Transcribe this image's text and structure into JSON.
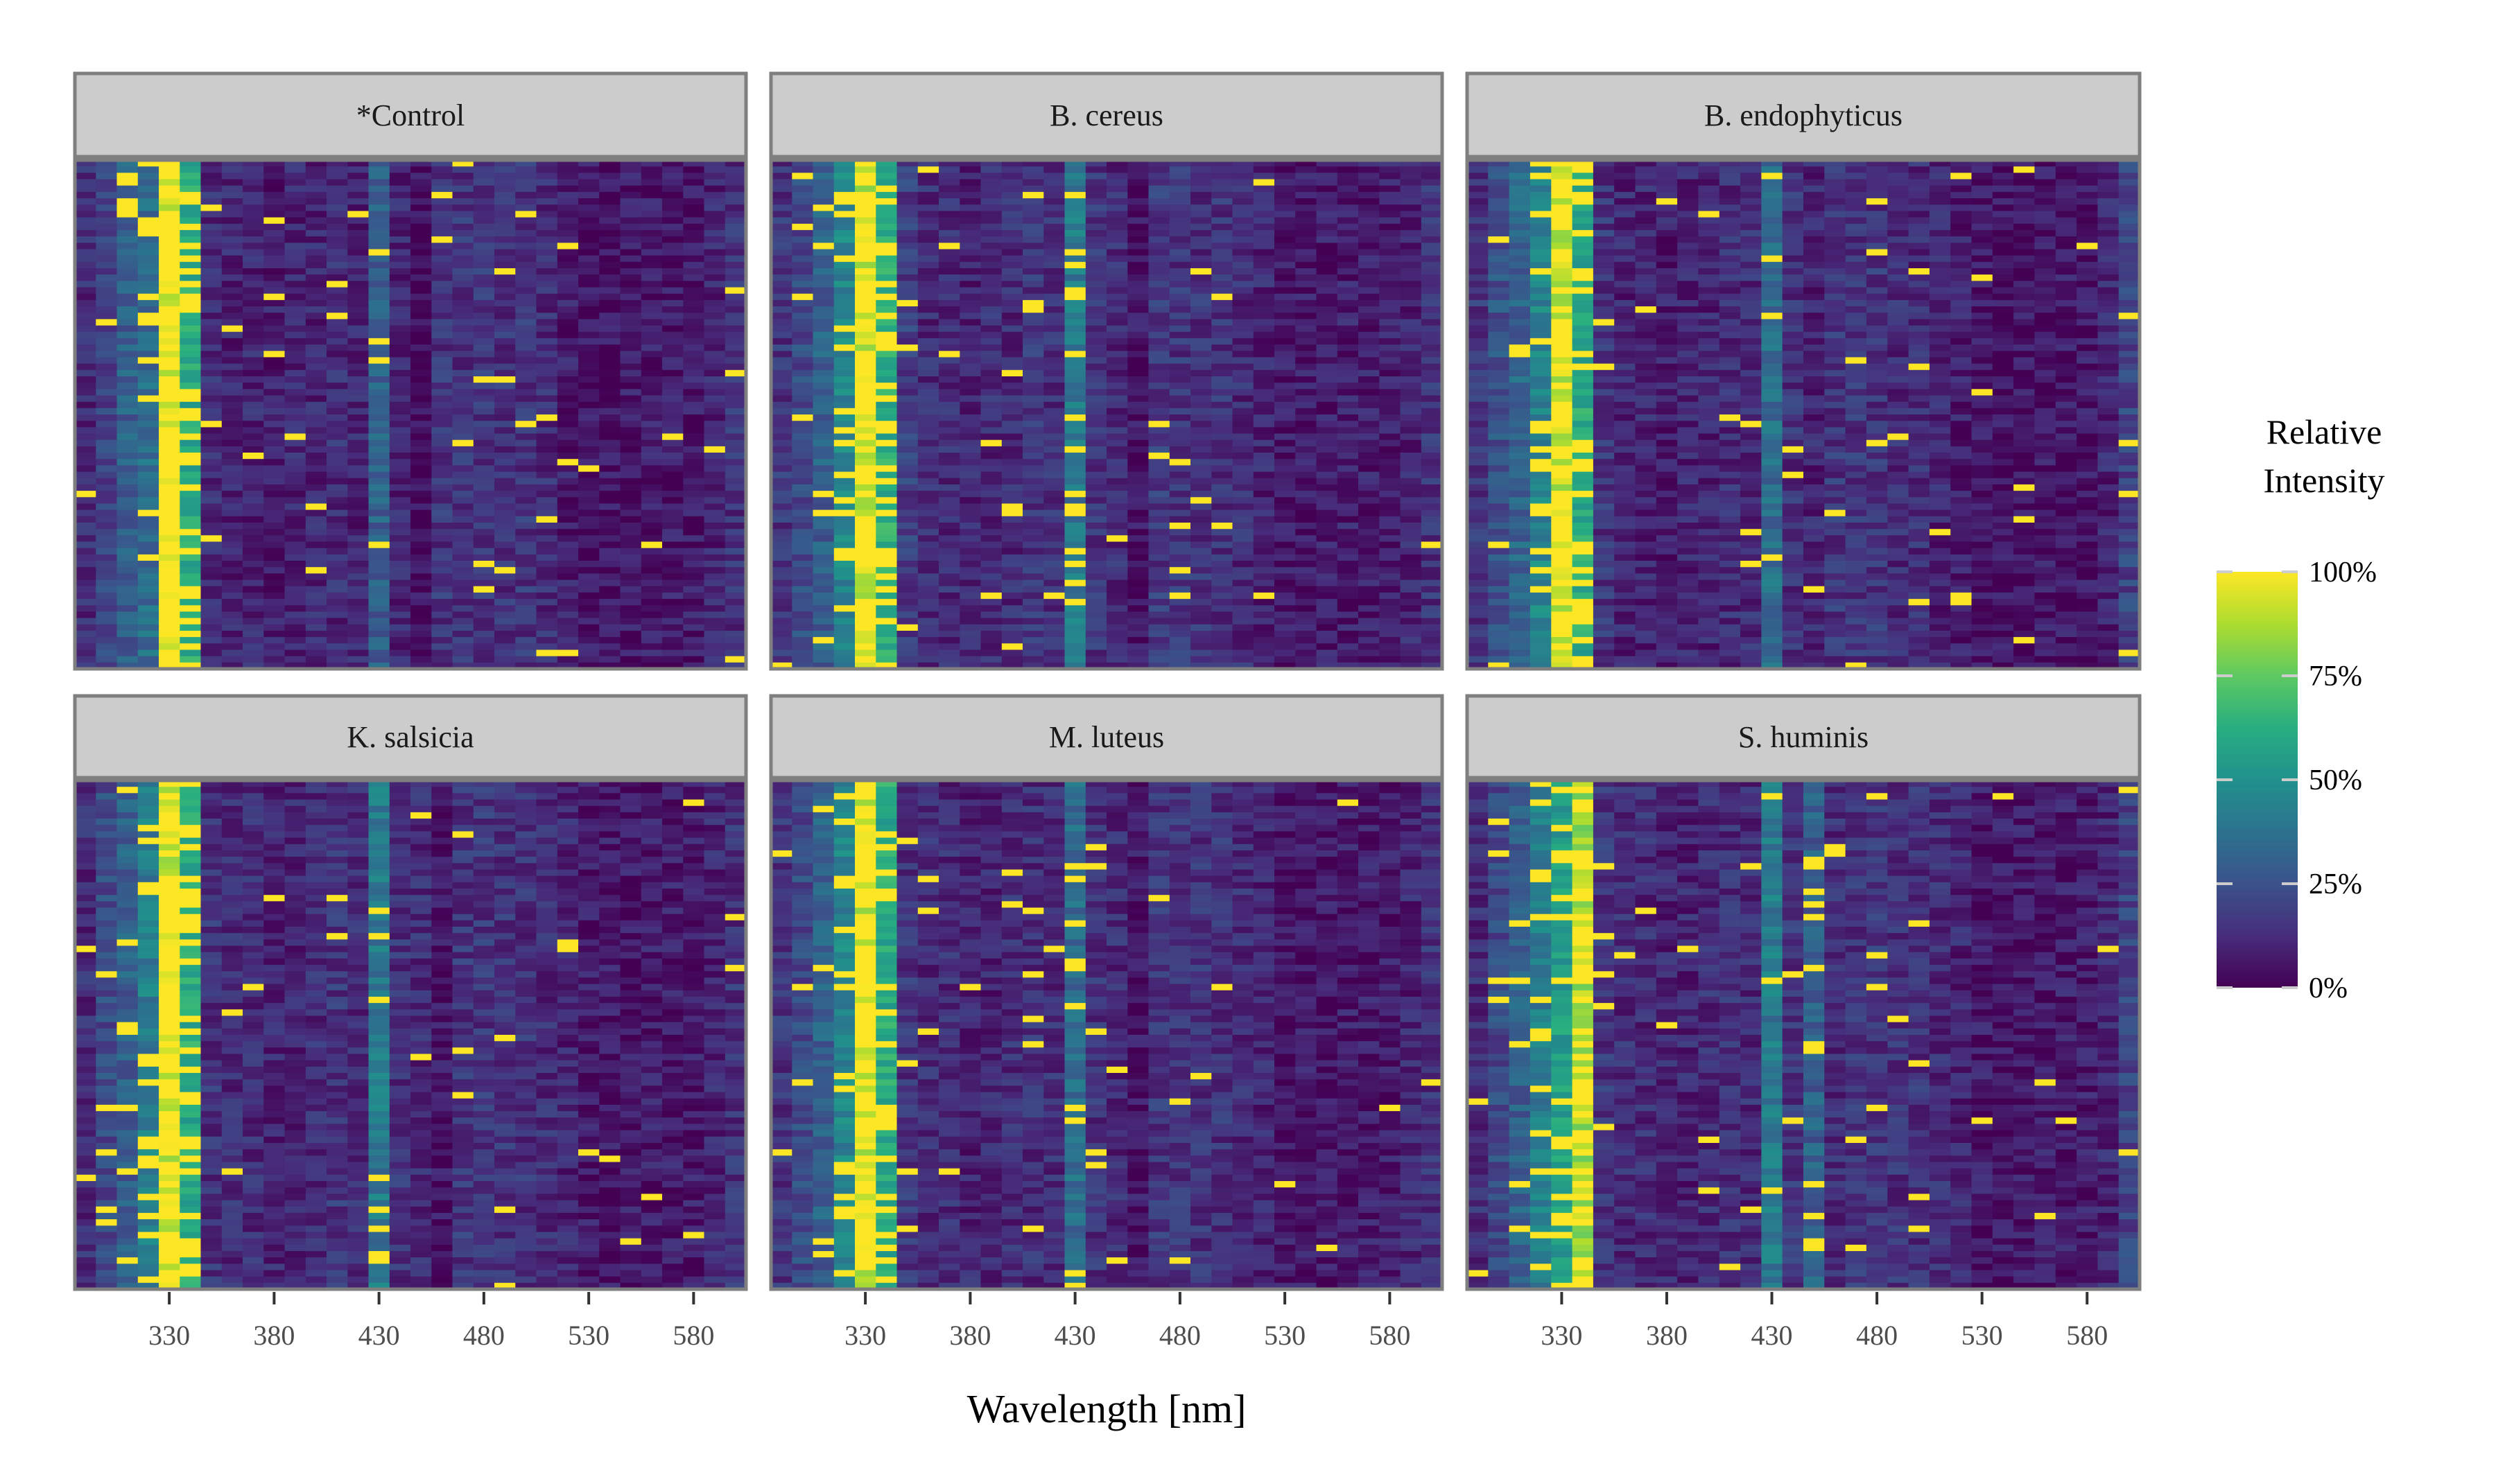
{
  "chart_data": {
    "type": "heatmap",
    "xlabel": "Wavelength [nm]",
    "ylabel": "",
    "x_ticks": [
      330,
      380,
      430,
      480,
      530,
      580
    ],
    "x_range": [
      285,
      605
    ],
    "wavelengths": [
      290,
      300,
      310,
      320,
      330,
      340,
      350,
      360,
      370,
      380,
      390,
      400,
      410,
      420,
      430,
      440,
      450,
      460,
      470,
      480,
      490,
      500,
      510,
      520,
      530,
      540,
      550,
      560,
      570,
      580,
      590,
      600
    ],
    "legend": {
      "title_lines": [
        "Relative",
        "Intensity"
      ],
      "ticks": [
        "0%",
        "25%",
        "50%",
        "75%",
        "100%"
      ],
      "tick_values": [
        0,
        25,
        50,
        75,
        100
      ],
      "colormap": "viridis",
      "placement": "right"
    },
    "grid": false,
    "panels": [
      {
        "name": "*Control",
        "column_mean": [
          0.12,
          0.2,
          0.3,
          0.35,
          0.95,
          0.6,
          0.12,
          0.1,
          0.1,
          0.08,
          0.1,
          0.1,
          0.12,
          0.1,
          0.3,
          0.1,
          0.03,
          0.15,
          0.15,
          0.15,
          0.14,
          0.15,
          0.12,
          0.08,
          0.05,
          0.05,
          0.06,
          0.07,
          0.07,
          0.07,
          0.1,
          0.14
        ]
      },
      {
        "name": "B. cereus",
        "column_mean": [
          0.15,
          0.22,
          0.3,
          0.45,
          0.9,
          0.62,
          0.18,
          0.12,
          0.12,
          0.1,
          0.12,
          0.12,
          0.15,
          0.14,
          0.4,
          0.15,
          0.12,
          0.05,
          0.16,
          0.15,
          0.14,
          0.14,
          0.12,
          0.1,
          0.06,
          0.06,
          0.07,
          0.08,
          0.08,
          0.08,
          0.1,
          0.14
        ]
      },
      {
        "name": "B. endophyticus",
        "column_mean": [
          0.15,
          0.25,
          0.32,
          0.45,
          0.9,
          0.6,
          0.15,
          0.1,
          0.1,
          0.08,
          0.1,
          0.1,
          0.12,
          0.12,
          0.35,
          0.14,
          0.1,
          0.15,
          0.15,
          0.15,
          0.12,
          0.12,
          0.1,
          0.08,
          0.05,
          0.05,
          0.05,
          0.06,
          0.06,
          0.06,
          0.1,
          0.2
        ]
      },
      {
        "name": "K. salsicia",
        "column_mean": [
          0.12,
          0.22,
          0.3,
          0.42,
          0.92,
          0.6,
          0.14,
          0.12,
          0.12,
          0.1,
          0.1,
          0.12,
          0.15,
          0.12,
          0.4,
          0.14,
          0.12,
          0.05,
          0.15,
          0.15,
          0.14,
          0.14,
          0.12,
          0.1,
          0.06,
          0.06,
          0.06,
          0.07,
          0.07,
          0.07,
          0.1,
          0.14
        ]
      },
      {
        "name": "M. luteus",
        "column_mean": [
          0.15,
          0.22,
          0.3,
          0.45,
          0.92,
          0.6,
          0.15,
          0.12,
          0.12,
          0.1,
          0.1,
          0.12,
          0.13,
          0.12,
          0.35,
          0.14,
          0.12,
          0.05,
          0.15,
          0.15,
          0.14,
          0.14,
          0.12,
          0.1,
          0.06,
          0.06,
          0.06,
          0.07,
          0.07,
          0.07,
          0.1,
          0.14
        ]
      },
      {
        "name": "S. huminis",
        "column_mean": [
          0.12,
          0.22,
          0.3,
          0.42,
          0.55,
          0.85,
          0.15,
          0.12,
          0.12,
          0.1,
          0.1,
          0.12,
          0.13,
          0.12,
          0.4,
          0.15,
          0.3,
          0.12,
          0.15,
          0.15,
          0.14,
          0.14,
          0.12,
          0.1,
          0.06,
          0.06,
          0.06,
          0.07,
          0.07,
          0.07,
          0.1,
          0.2
        ]
      }
    ],
    "rows_per_panel": 80,
    "colors": {
      "strip_fill": "#cccccc",
      "panel_border": "#7f7f7f",
      "tick_color": "#333333"
    }
  }
}
